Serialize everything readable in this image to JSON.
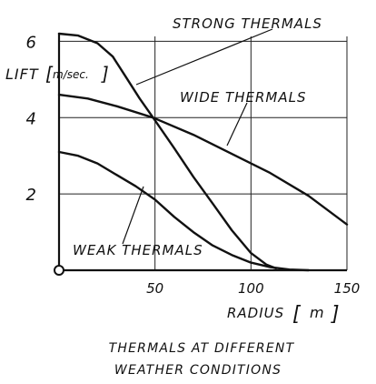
{
  "chart_data": {
    "type": "line",
    "xlabel": "RADIUS",
    "xlabel_unit": "m",
    "ylabel": "LIFT",
    "ylabel_unit": "m/sec.",
    "xlim": [
      0,
      150
    ],
    "ylim": [
      0,
      6.2
    ],
    "x_ticks": [
      50,
      100,
      150
    ],
    "y_ticks": [
      2,
      4,
      6
    ],
    "grid": true,
    "caption": [
      "THERMALS AT DIFFERENT",
      "WEATHER CONDITIONS"
    ],
    "series": [
      {
        "name": "STRONG THERMALS",
        "points": [
          [
            0,
            6.2
          ],
          [
            10,
            6.15
          ],
          [
            20,
            5.95
          ],
          [
            28,
            5.6
          ],
          [
            35,
            5.05
          ],
          [
            42,
            4.5
          ],
          [
            49,
            4.0
          ],
          [
            60,
            3.2
          ],
          [
            70,
            2.45
          ],
          [
            80,
            1.75
          ],
          [
            90,
            1.05
          ],
          [
            100,
            0.45
          ],
          [
            108,
            0.15
          ],
          [
            113,
            0.05
          ]
        ]
      },
      {
        "name": "WIDE THERMALS",
        "points": [
          [
            0,
            4.6
          ],
          [
            15,
            4.5
          ],
          [
            30,
            4.3
          ],
          [
            49,
            4.0
          ],
          [
            70,
            3.55
          ],
          [
            90,
            3.05
          ],
          [
            110,
            2.55
          ],
          [
            130,
            1.95
          ],
          [
            150,
            1.2
          ]
        ]
      },
      {
        "name": "WEAK THERMALS",
        "points": [
          [
            0,
            3.1
          ],
          [
            10,
            3.0
          ],
          [
            20,
            2.8
          ],
          [
            30,
            2.5
          ],
          [
            40,
            2.2
          ],
          [
            50,
            1.85
          ],
          [
            60,
            1.4
          ],
          [
            70,
            1.0
          ],
          [
            80,
            0.65
          ],
          [
            90,
            0.4
          ],
          [
            100,
            0.2
          ],
          [
            110,
            0.08
          ],
          [
            120,
            0.02
          ],
          [
            130,
            0.0
          ]
        ]
      }
    ]
  }
}
